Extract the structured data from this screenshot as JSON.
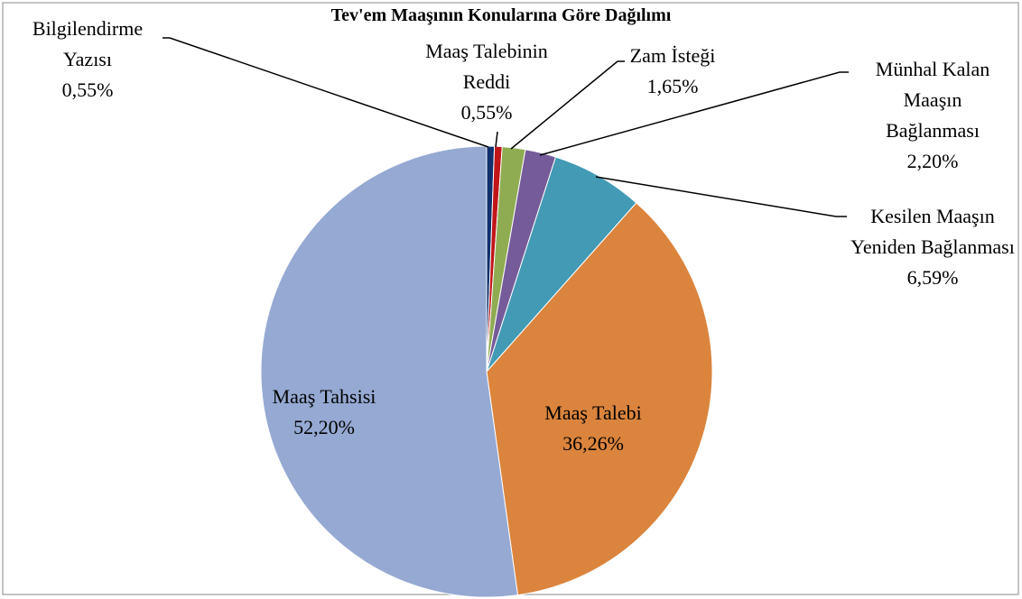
{
  "chart_data": {
    "type": "pie",
    "title": "Tev'em Maaşının Konularına Göre Dağılımı",
    "categories": [
      "Bilgilendirme Yazısı",
      "Maaş Talebinin Reddi",
      "Zam İsteği",
      "Münhal Kalan Maaşın Bağlanması",
      "Kesilen Maaşın Yeniden Bağlanması",
      "Maaş Talebi",
      "Maaş Tahsisi"
    ],
    "values": [
      0.55,
      0.55,
      1.65,
      2.2,
      6.59,
      36.26,
      52.2
    ],
    "value_labels": [
      "0,55%",
      "0,55%",
      "1,65%",
      "2,20%",
      "6,59%",
      "36,26%",
      "52,20%"
    ],
    "colors": [
      "#10306e",
      "#c0161a",
      "#8fac52",
      "#755b99",
      "#439ab5",
      "#db843d",
      "#95a9d2"
    ]
  }
}
